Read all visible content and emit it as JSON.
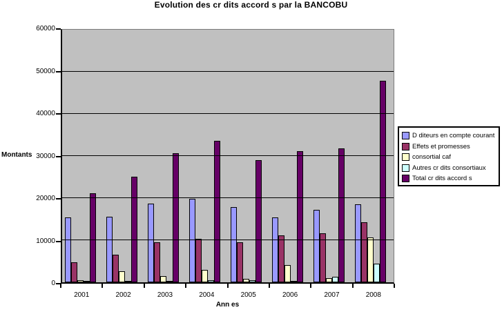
{
  "chart_data": {
    "type": "bar",
    "title": "Evolution des cr dits accord s par la BANCOBU",
    "xlabel": "Ann es",
    "ylabel": "Montants",
    "categories": [
      "2001",
      "2002",
      "2003",
      "2004",
      "2005",
      "2006",
      "2007",
      "2008"
    ],
    "series": [
      {
        "name": "D diteurs en compte courant",
        "color": "#9999FF",
        "values": [
          15400,
          15500,
          18700,
          19800,
          17900,
          15400,
          17200,
          18500
        ]
      },
      {
        "name": "Effets et promesses",
        "color": "#993366",
        "values": [
          4800,
          6600,
          9500,
          10400,
          9500,
          11200,
          11600,
          14200
        ]
      },
      {
        "name": "consortial caf",
        "color": "#FFFFCC",
        "values": [
          500,
          2700,
          1400,
          2900,
          800,
          4100,
          1000,
          10600
        ]
      },
      {
        "name": "Autres cr dits consortiaux",
        "color": "#CCFFFF",
        "values": [
          200,
          400,
          300,
          500,
          500,
          300,
          1300,
          4400
        ]
      },
      {
        "name": "Total cr dits accord s",
        "color": "#660066",
        "values": [
          21100,
          25100,
          30700,
          33600,
          29100,
          31100,
          31800,
          47900
        ]
      }
    ],
    "ylim": [
      0,
      60000
    ],
    "ytick_step": 10000,
    "ytick_labels": [
      "0",
      "10000",
      "20000",
      "30000",
      "40000",
      "50000",
      "60000"
    ],
    "grid": true,
    "legend_position": "right",
    "plot_bg_color": "#C0C0C0",
    "gridline_color": "#000000",
    "bar_border_color": "#000000"
  }
}
